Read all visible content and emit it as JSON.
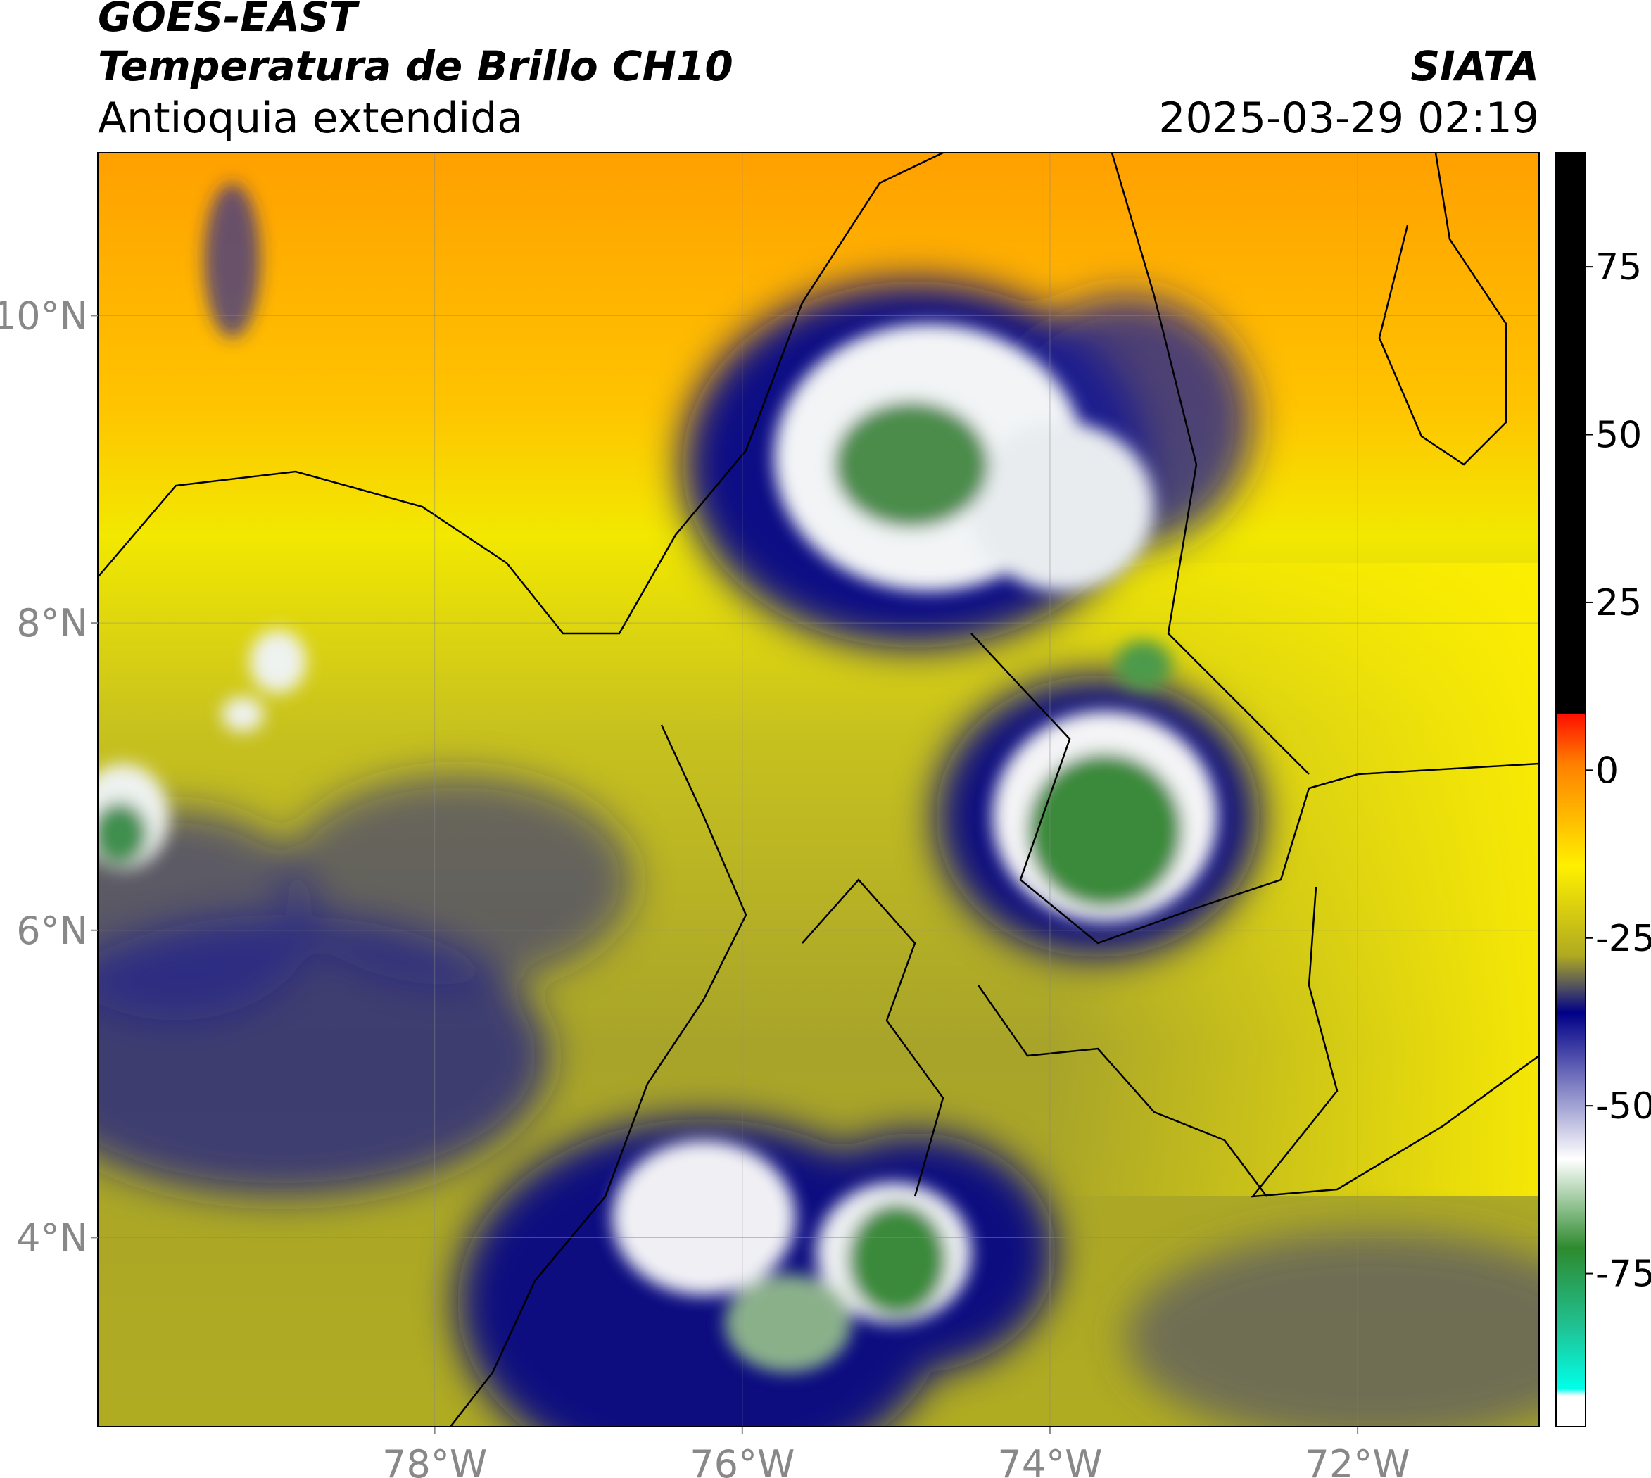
{
  "header": {
    "source": "GOES-EAST",
    "product": "Temperatura de Brillo CH10",
    "region": "Antioquia extendida",
    "organization": "SIATA",
    "datetime": "2025-03-29 02:19"
  },
  "map": {
    "lat_range": [
      2.77,
      11.06
    ],
    "lon_range": [
      -80.19,
      -70.82
    ],
    "lat_ticks": [
      {
        "value": 10,
        "label": "10°N"
      },
      {
        "value": 8,
        "label": "8°N"
      },
      {
        "value": 6,
        "label": "6°N"
      },
      {
        "value": 4,
        "label": "4°N"
      }
    ],
    "lon_ticks": [
      {
        "value": -78,
        "label": "78°W"
      },
      {
        "value": -76,
        "label": "76°W"
      },
      {
        "value": -74,
        "label": "74°W"
      },
      {
        "value": -72,
        "label": "72°W"
      }
    ]
  },
  "colorbar": {
    "range": [
      -97.8,
      92
    ],
    "ticks": [
      75,
      50,
      25,
      0,
      -25,
      -50,
      -75
    ]
  }
}
